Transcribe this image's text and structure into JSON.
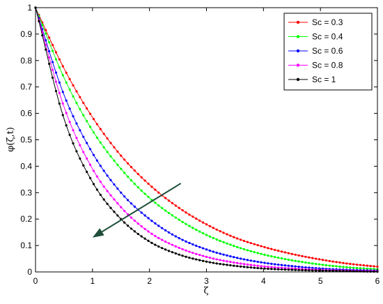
{
  "chart_data": {
    "type": "line",
    "title": "",
    "xlabel": "ζ",
    "ylabel": "φ(ζ,t)",
    "xlim": [
      0,
      6
    ],
    "ylim": [
      0,
      1
    ],
    "x_ticks": [
      "0",
      "1",
      "2",
      "3",
      "4",
      "5",
      "6"
    ],
    "y_ticks": [
      "0",
      "0.1",
      "0.2",
      "0.3",
      "0.4",
      "0.5",
      "0.6",
      "0.7",
      "0.8",
      "0.9",
      "1"
    ],
    "grid": false,
    "legend_position": "top-right",
    "marker": "dot",
    "x": [
      0,
      0.5,
      1,
      1.5,
      2,
      2.5,
      3,
      3.5,
      4,
      4.5,
      5,
      5.5,
      6
    ],
    "series": [
      {
        "name": "Sc = 0.3",
        "color": "#ff0000",
        "values": [
          1.0,
          0.77,
          0.585,
          0.44,
          0.33,
          0.245,
          0.18,
          0.13,
          0.095,
          0.068,
          0.047,
          0.031,
          0.02
        ]
      },
      {
        "name": "Sc = 0.4",
        "color": "#00ff00",
        "values": [
          1.0,
          0.735,
          0.535,
          0.39,
          0.28,
          0.2,
          0.14,
          0.097,
          0.066,
          0.044,
          0.028,
          0.017,
          0.01
        ]
      },
      {
        "name": "Sc = 0.6",
        "color": "#0000ff",
        "values": [
          1.0,
          0.67,
          0.45,
          0.3,
          0.2,
          0.13,
          0.085,
          0.055,
          0.035,
          0.022,
          0.013,
          0.008,
          0.005
        ]
      },
      {
        "name": "Sc = 0.8",
        "color": "#ff00ff",
        "values": [
          1.0,
          0.625,
          0.39,
          0.245,
          0.15,
          0.093,
          0.057,
          0.035,
          0.021,
          0.013,
          0.008,
          0.005,
          0.003
        ]
      },
      {
        "name": "Sc = 1",
        "color": "#000000",
        "values": [
          1.0,
          0.58,
          0.34,
          0.2,
          0.115,
          0.067,
          0.039,
          0.023,
          0.013,
          0.008,
          0.005,
          0.003,
          0.001
        ]
      }
    ],
    "annotations": [
      {
        "type": "arrow",
        "color": "#1f4f3a",
        "from": [
          2.55,
          0.335
        ],
        "to": [
          1.0,
          0.13
        ]
      }
    ]
  }
}
